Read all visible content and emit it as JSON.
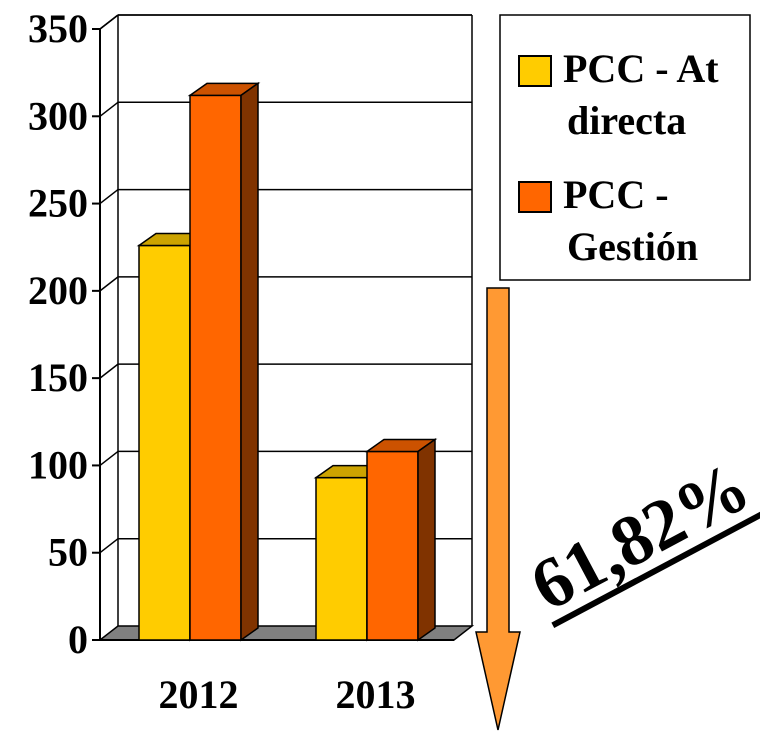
{
  "chart_data": {
    "type": "bar",
    "categories": [
      "2012",
      "2013"
    ],
    "series": [
      {
        "name": "PCC - At directa",
        "values": [
          226,
          93
        ]
      },
      {
        "name": "PCC - Gestión",
        "values": [
          312,
          108
        ]
      }
    ],
    "ylim": [
      0,
      350
    ],
    "yticks": [
      0,
      50,
      100,
      150,
      200,
      250,
      300,
      350
    ],
    "grid": true,
    "legend_position": "top-right",
    "annotation": "61,82%",
    "colors": {
      "series": [
        "#FFCC00",
        "#FF6600"
      ],
      "series_top": [
        "#CCA300",
        "#CC5200"
      ],
      "series_side": [
        "#806600",
        "#803300"
      ],
      "floor": "#808080",
      "arrow": "#FF9933"
    }
  }
}
